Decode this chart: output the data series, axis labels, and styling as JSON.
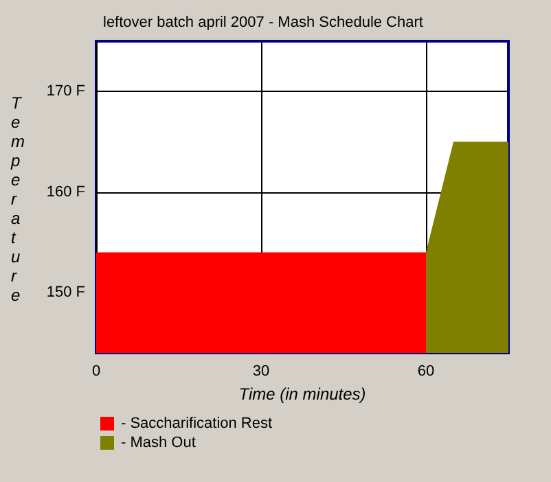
{
  "chart_data": {
    "type": "area",
    "title": "leftover batch april 2007 - Mash Schedule Chart",
    "xlabel": "Time (in minutes)",
    "ylabel": "Temperature",
    "series": [
      {
        "name": "- Saccharification Rest",
        "color": "#ff0000",
        "x": [
          0,
          60
        ],
        "values": [
          154,
          154
        ]
      },
      {
        "name": "- Mash Out",
        "color": "#808000",
        "x": [
          60,
          65,
          75
        ],
        "values": [
          154,
          165,
          165
        ]
      }
    ],
    "xlim": [
      0,
      75
    ],
    "xticks": [
      0,
      30,
      60
    ],
    "ylim": [
      144,
      175
    ],
    "yticks": [
      {
        "value": 150,
        "label": "150 F"
      },
      {
        "value": 160,
        "label": "160 F"
      },
      {
        "value": 170,
        "label": "170 F"
      }
    ],
    "grid": true,
    "legend": "bottom left",
    "marker": "none"
  }
}
